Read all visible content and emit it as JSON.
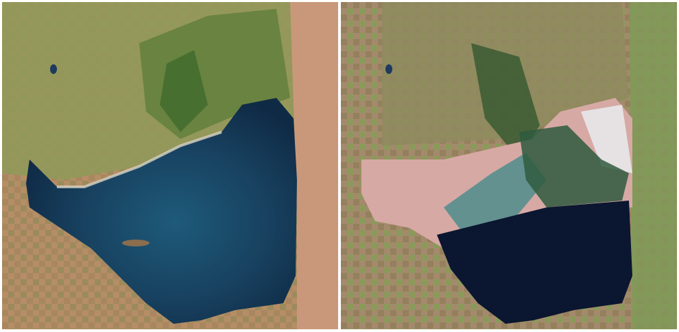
{
  "images": [
    {
      "colors": {
        "land": "#b58e66",
        "vegetation": "#7f9a4e",
        "dark_green": "#3f5f2c",
        "water": "#17405e",
        "water_deep": "#0f2a45",
        "shore": "#d8d2c4"
      }
    },
    {
      "colors": {
        "land": "#a48a6c",
        "vegetation": "#7f9a4e",
        "dark_green": "#2f4a32",
        "water": "#0b1630",
        "salt_flat": "#d7a9a4",
        "salt_white": "#e6e2e4",
        "teal": "#3c8a8a"
      }
    }
  ]
}
